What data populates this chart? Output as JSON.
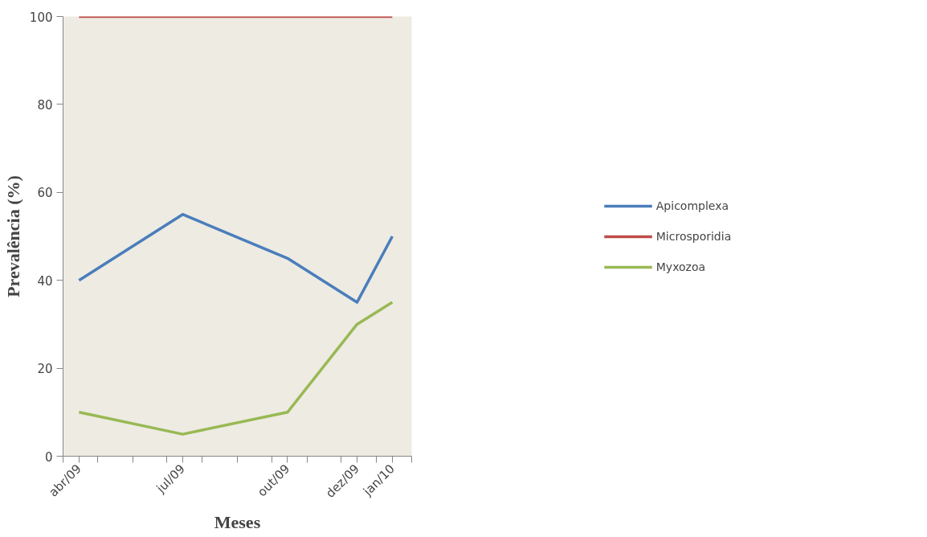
{
  "chart_data": {
    "type": "line",
    "xlabel": "Meses",
    "ylabel": "Prevalência (%)",
    "x": [
      "2009-04-15",
      "2009-07-15",
      "2009-10-15",
      "2009-12-15",
      "2010-01-15"
    ],
    "series": [
      {
        "name": "Apicomplexa",
        "color": "#4a7ebb",
        "values": [
          40,
          55,
          45,
          35,
          50
        ]
      },
      {
        "name": "Microsporidia",
        "color": "#be4b48",
        "values": [
          100,
          100,
          100,
          100,
          100
        ]
      },
      {
        "name": "Myxozoa",
        "color": "#98b954",
        "values": [
          10,
          5,
          10,
          30,
          35
        ]
      }
    ],
    "xlim": [
      "2009-04-01",
      "2010-02-01"
    ],
    "xticks": [
      {
        "value": "2009-04-01",
        "label": null
      },
      {
        "value": "2009-04-15",
        "label": "abr/09"
      },
      {
        "value": "2009-05-01",
        "label": null
      },
      {
        "value": "2009-06-01",
        "label": null
      },
      {
        "value": "2009-07-01",
        "label": null
      },
      {
        "value": "2009-07-15",
        "label": "jul/09"
      },
      {
        "value": "2009-08-01",
        "label": null
      },
      {
        "value": "2009-09-01",
        "label": null
      },
      {
        "value": "2009-10-01",
        "label": null
      },
      {
        "value": "2009-10-15",
        "label": "out/09"
      },
      {
        "value": "2009-11-01",
        "label": null
      },
      {
        "value": "2009-12-01",
        "label": null
      },
      {
        "value": "2009-12-15",
        "label": "dez/09"
      },
      {
        "value": "2010-01-01",
        "label": null
      },
      {
        "value": "2010-01-15",
        "label": "jan/10"
      },
      {
        "value": "2010-02-01",
        "label": null
      }
    ],
    "ylim": [
      0,
      100
    ],
    "yticks": [
      0,
      20,
      40,
      60,
      80,
      100
    ],
    "grid": false,
    "legend": "right",
    "marker": "none",
    "line_style": "solid"
  }
}
